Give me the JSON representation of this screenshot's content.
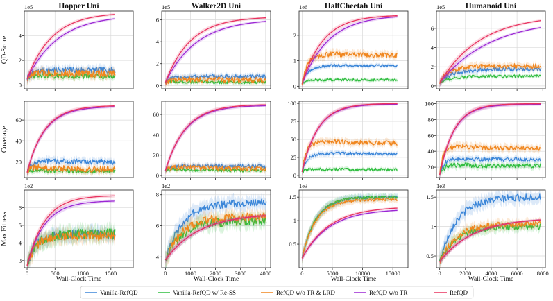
{
  "chart_data": {
    "type": "line",
    "x_label": "Wall-Clock Time",
    "row_labels": [
      "QD-Score",
      "Coverage",
      "Max Fitness"
    ],
    "columns": [
      {
        "title": "Hopper Uni",
        "x_ticks": [
          0,
          500,
          1000,
          1500
        ],
        "xlim": [
          -50,
          1900
        ]
      },
      {
        "title": "Walker2D Uni",
        "x_ticks": [
          0,
          1000,
          2000,
          3000,
          4000
        ],
        "xlim": [
          -150,
          4200
        ]
      },
      {
        "title": "HalfCheetah Uni",
        "x_ticks": [
          0,
          5000,
          10000,
          15000
        ],
        "xlim": [
          -500,
          17500
        ]
      },
      {
        "title": "Humanoid Uni",
        "x_ticks": [
          0,
          2000,
          4000,
          6000,
          8000
        ],
        "xlim": [
          -250,
          8200
        ]
      }
    ],
    "series": [
      {
        "name": "Vanilla-RefQD",
        "color": "#3b86d8"
      },
      {
        "name": "Vanilla-RefQD w/ Re-SS",
        "color": "#2fbd3f"
      },
      {
        "name": "RefQD w/o TR & LRD",
        "color": "#f0861e"
      },
      {
        "name": "RefQD w/o TR",
        "color": "#9b27d4"
      },
      {
        "name": "RefQD",
        "color": "#e8325f"
      }
    ],
    "panels": [
      {
        "row": 0,
        "col": 0,
        "exponent": "1e5",
        "ylim": [
          -0.3,
          6.0
        ],
        "yticks": [
          0,
          2,
          4
        ],
        "final": [
          1.2,
          0.7,
          0.9,
          5.7,
          5.9
        ],
        "start": 0.5,
        "rate": 3.5,
        "noise": [
          0.25,
          0.2,
          0.3,
          0,
          0
        ]
      },
      {
        "row": 0,
        "col": 1,
        "exponent": "1e5",
        "ylim": [
          -0.3,
          6.8
        ],
        "yticks": [
          0,
          2,
          4,
          6
        ],
        "final": [
          0.8,
          0.3,
          0.5,
          6.1,
          6.3
        ],
        "start": 0.3,
        "rate": 4.0,
        "noise": [
          0.2,
          0.15,
          0.25,
          0,
          0
        ]
      },
      {
        "row": 0,
        "col": 2,
        "exponent": "1e6",
        "ylim": [
          -0.1,
          2.95
        ],
        "yticks": [
          0,
          1,
          2
        ],
        "final": [
          0.8,
          0.25,
          1.2,
          2.8,
          2.8
        ],
        "start": 0.1,
        "rate": 4.5,
        "noise": [
          0.05,
          0.05,
          0.1,
          0,
          0
        ]
      },
      {
        "row": 0,
        "col": 3,
        "exponent": "1e5",
        "ylim": [
          -0.3,
          7.8
        ],
        "yticks": [
          0,
          2,
          4,
          6
        ],
        "final": [
          1.7,
          1.0,
          2.0,
          7.0,
          7.4
        ],
        "start": 0.3,
        "rate": 2.5,
        "noise": [
          0.2,
          0.15,
          0.25,
          0,
          0
        ]
      },
      {
        "row": 1,
        "col": 0,
        "exponent": "",
        "ylim": [
          5,
          78
        ],
        "yticks": [
          20,
          40,
          60
        ],
        "final": [
          20,
          11,
          13,
          73,
          74
        ],
        "start": 10,
        "rate": 5.0,
        "noise": [
          2.5,
          2,
          3,
          0,
          0
        ]
      },
      {
        "row": 1,
        "col": 1,
        "exponent": "",
        "ylim": [
          -2,
          73
        ],
        "yticks": [
          0,
          20,
          40,
          60
        ],
        "final": [
          9,
          5,
          7,
          69,
          70
        ],
        "start": 5,
        "rate": 5.0,
        "noise": [
          2,
          1.5,
          2.5,
          0,
          0
        ]
      },
      {
        "row": 1,
        "col": 2,
        "exponent": "",
        "ylim": [
          -3,
          103
        ],
        "yticks": [
          0,
          25,
          50,
          75,
          100
        ],
        "final": [
          30,
          8,
          45,
          99,
          100
        ],
        "start": 5,
        "rate": 6.0,
        "noise": [
          2,
          2,
          3,
          0,
          0
        ]
      },
      {
        "row": 1,
        "col": 3,
        "exponent": "",
        "ylim": [
          7,
          103
        ],
        "yticks": [
          20,
          40,
          60,
          80,
          100
        ],
        "final": [
          30,
          22,
          44,
          99,
          100
        ],
        "start": 10,
        "rate": 7.0,
        "noise": [
          2.5,
          3,
          3,
          0,
          0
        ]
      },
      {
        "row": 2,
        "col": 0,
        "exponent": "1e2",
        "ylim": [
          2.6,
          7.0
        ],
        "yticks": [
          3,
          4,
          5,
          6
        ],
        "final": [
          4.5,
          4.5,
          4.4,
          6.4,
          6.7
        ],
        "start": 2.7,
        "rate": 5.0,
        "noise": [
          0.25,
          0.3,
          0.25,
          0,
          0
        ]
      },
      {
        "row": 2,
        "col": 1,
        "exponent": "1e2",
        "ylim": [
          3.3,
          8.3
        ],
        "yticks": [
          4,
          6,
          8
        ],
        "final": [
          7.5,
          6.3,
          6.6,
          6.8,
          6.8
        ],
        "start": 3.8,
        "rate": 3.0,
        "noise": [
          0.25,
          0.3,
          0.25,
          0,
          0
        ]
      },
      {
        "row": 2,
        "col": 2,
        "exponent": "1e3",
        "ylim": [
          0.0,
          1.65
        ],
        "yticks": [
          0.5,
          1.0,
          1.5
        ],
        "final": [
          1.5,
          1.5,
          1.45,
          1.25,
          1.3
        ],
        "start": 0.2,
        "rate": 3.5,
        "noise": [
          0.03,
          0.03,
          0.03,
          0,
          0
        ]
      },
      {
        "row": 2,
        "col": 3,
        "exponent": "1e3",
        "ylim": [
          0.3,
          1.62
        ],
        "yticks": [
          0.5,
          1.0,
          1.5
        ],
        "final": [
          1.5,
          1.0,
          1.05,
          1.15,
          1.15
        ],
        "start": 0.4,
        "rate": 3.0,
        "noise": [
          0.06,
          0.05,
          0.05,
          0,
          0
        ]
      }
    ]
  }
}
